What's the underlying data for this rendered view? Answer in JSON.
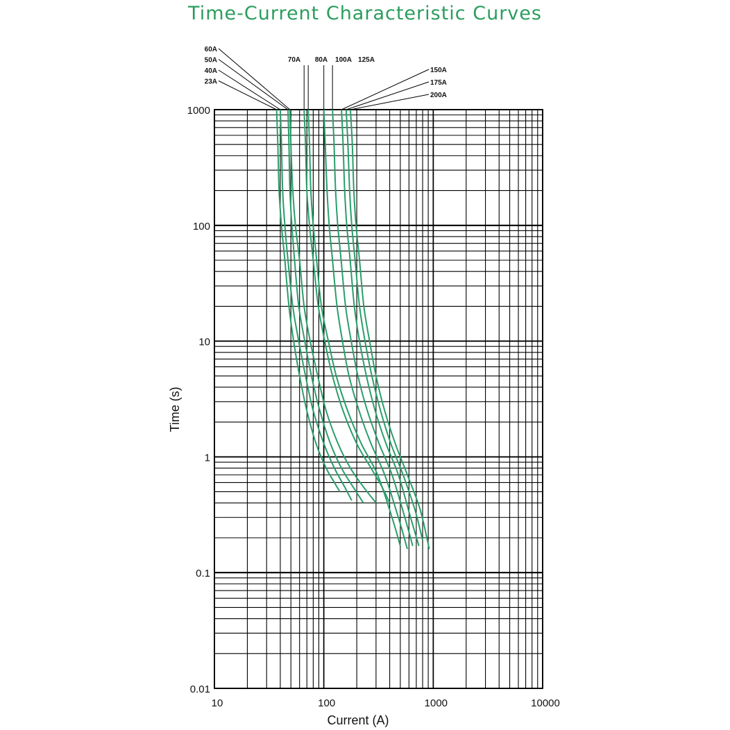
{
  "page": {
    "title": "Time-Current Characteristic Curves"
  },
  "colors": {
    "title": "#2a9d5c",
    "curve": "#2a9d6a",
    "grid": "#000000",
    "text": "#111111"
  },
  "chart_data": {
    "type": "line",
    "title": "Time-Current Characteristic Curves",
    "xlabel": "Current (A)",
    "ylabel": "Time (s)",
    "x_scale": "log",
    "y_scale": "log",
    "xlim": [
      10,
      10000
    ],
    "ylim": [
      0.01,
      1000
    ],
    "x_ticks": [
      10,
      100,
      1000,
      10000
    ],
    "x_tick_labels": [
      "10",
      "100",
      "1000",
      "10000"
    ],
    "y_ticks": [
      0.01,
      0.1,
      1,
      10,
      100,
      1000
    ],
    "y_tick_labels": [
      "0.01",
      "0.1",
      "1",
      "10",
      "100",
      "1000"
    ],
    "grid": true,
    "legend": "curve labels above plot with leader lines",
    "series": [
      {
        "name": "23A",
        "label_pos": "left",
        "x": [
          37,
          38,
          39,
          41,
          44,
          48,
          53,
          60,
          70,
          85,
          105,
          125,
          140
        ],
        "y": [
          1000,
          500,
          200,
          100,
          50,
          20,
          10,
          5,
          2.5,
          1.3,
          0.8,
          0.6,
          0.5
        ]
      },
      {
        "name": "40A",
        "label_pos": "left",
        "x": [
          40,
          41,
          42,
          44,
          47,
          52,
          59,
          68,
          80,
          100,
          125,
          155,
          180
        ],
        "y": [
          1000,
          500,
          200,
          100,
          50,
          20,
          10,
          5,
          2.5,
          1.3,
          0.8,
          0.55,
          0.42
        ]
      },
      {
        "name": "50A",
        "label_pos": "left",
        "x": [
          47,
          48,
          49,
          51,
          54,
          59,
          67,
          77,
          92,
          115,
          145,
          185,
          230
        ],
        "y": [
          1000,
          500,
          200,
          100,
          50,
          20,
          10,
          5,
          2.5,
          1.3,
          0.8,
          0.55,
          0.4
        ]
      },
      {
        "name": "60A",
        "label_pos": "left",
        "x": [
          49,
          50,
          52,
          55,
          60,
          66,
          75,
          88,
          105,
          135,
          175,
          230,
          300
        ],
        "y": [
          1000,
          500,
          200,
          100,
          50,
          20,
          10,
          5,
          2.5,
          1.3,
          0.8,
          0.55,
          0.4
        ]
      },
      {
        "name": "70A",
        "label_pos": "top",
        "x": [
          66,
          68,
          70,
          74,
          80,
          89,
          102,
          120,
          150,
          200,
          270,
          340,
          400
        ],
        "y": [
          1000,
          500,
          200,
          100,
          50,
          20,
          10,
          5,
          2.5,
          1.3,
          0.8,
          0.55,
          0.4
        ]
      },
      {
        "name": "80A",
        "label_pos": "top",
        "x": [
          72,
          74,
          76,
          80,
          86,
          95,
          110,
          130,
          165,
          220,
          310,
          420,
          500
        ],
        "y": [
          1000,
          500,
          200,
          100,
          50,
          20,
          10,
          5,
          2.5,
          1.3,
          0.7,
          0.3,
          0.17
        ]
      },
      {
        "name": "100A",
        "label_pos": "top",
        "x": [
          100,
          103,
          107,
          112,
          120,
          132,
          148,
          170,
          210,
          270,
          360,
          480,
          580
        ],
        "y": [
          1000,
          500,
          200,
          100,
          50,
          20,
          10,
          5,
          2.5,
          1.3,
          0.7,
          0.3,
          0.16
        ]
      },
      {
        "name": "125A",
        "label_pos": "top",
        "x": [
          120,
          124,
          128,
          134,
          144,
          158,
          178,
          205,
          250,
          320,
          420,
          550,
          650
        ],
        "y": [
          1000,
          500,
          200,
          100,
          50,
          20,
          10,
          5,
          2.5,
          1.3,
          0.7,
          0.3,
          0.17
        ]
      },
      {
        "name": "150A",
        "label_pos": "right",
        "x": [
          145,
          150,
          155,
          162,
          174,
          190,
          212,
          245,
          295,
          370,
          480,
          620,
          740
        ],
        "y": [
          1000,
          500,
          200,
          100,
          50,
          20,
          10,
          5,
          2.5,
          1.3,
          0.7,
          0.3,
          0.17
        ]
      },
      {
        "name": "175A",
        "label_pos": "right",
        "x": [
          160,
          166,
          172,
          180,
          193,
          212,
          238,
          275,
          330,
          410,
          530,
          680,
          800
        ],
        "y": [
          1000,
          500,
          200,
          100,
          50,
          20,
          10,
          5,
          2.5,
          1.3,
          0.7,
          0.35,
          0.19
        ]
      },
      {
        "name": "200A",
        "label_pos": "right",
        "x": [
          175,
          182,
          188,
          197,
          212,
          232,
          262,
          300,
          360,
          450,
          580,
          760,
          920
        ],
        "y": [
          1000,
          500,
          200,
          100,
          50,
          20,
          10,
          5,
          2.5,
          1.3,
          0.7,
          0.35,
          0.16
        ]
      }
    ]
  }
}
